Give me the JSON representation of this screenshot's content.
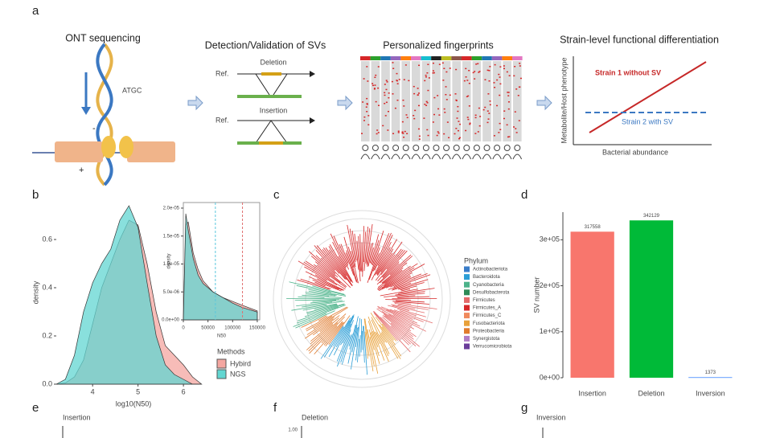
{
  "panel_labels": [
    "a",
    "b",
    "c",
    "d",
    "e",
    "f",
    "g"
  ],
  "panel_a": {
    "ont_title": "ONT sequencing",
    "bases": "ATGC",
    "minus": "-",
    "plus": "+",
    "sv_title": "Detection/Validation of SVs",
    "deletion": "Deletion",
    "insertion": "Insertion",
    "ref": [
      "Ref.",
      "Ref."
    ],
    "fingerprint_title": "Personalized fingerprints",
    "strain_title": "Strain-level functional differentiation",
    "strain1": "Strain 1 without SV",
    "strain2": "Strain 2 with SV",
    "y_label": "Metabolite/Host phenotype",
    "x_label": "Bacterial abundance"
  },
  "chart_data": [
    {
      "type": "area",
      "x_label": "log10(N50)",
      "y_label": "density",
      "x": [
        3.2,
        3.4,
        3.6,
        3.8,
        4.0,
        4.2,
        4.4,
        4.6,
        4.8,
        5.0,
        5.2,
        5.4,
        5.6,
        5.8,
        6.0,
        6.2,
        6.4
      ],
      "series": [
        {
          "name": "Hybird",
          "color": "#f4a6a0",
          "values": [
            0,
            0.005,
            0.03,
            0.1,
            0.25,
            0.4,
            0.5,
            0.6,
            0.68,
            0.66,
            0.5,
            0.3,
            0.16,
            0.12,
            0.08,
            0.03,
            0
          ]
        },
        {
          "name": "NGS",
          "color": "#62d6d1",
          "values": [
            0,
            0.02,
            0.12,
            0.3,
            0.42,
            0.5,
            0.56,
            0.68,
            0.74,
            0.65,
            0.42,
            0.2,
            0.08,
            0.04,
            0.02,
            0,
            0
          ]
        }
      ],
      "legend_title": "Methods",
      "xlim": [
        3.2,
        6.6
      ],
      "xticks": [
        4,
        5,
        6
      ],
      "ylim": [
        0,
        0.76
      ],
      "yticks": [
        {
          "value": 0,
          "label": "0.0"
        },
        0.2,
        0.4,
        0.6
      ]
    },
    {
      "type": "area",
      "x_label": "N50",
      "y_label": "density",
      "x": [
        0,
        5000,
        10000,
        20000,
        30000,
        40000,
        60000,
        80000,
        100000,
        120000,
        150000
      ],
      "series": [
        {
          "name": "Hybird",
          "color": "#f4a6a0",
          "values": [
            0,
            1.7e-05,
            1.75e-05,
            1.2e-05,
            9e-06,
            7e-06,
            5e-06,
            4e-06,
            3.3e-06,
            2.6e-06,
            1.6e-06
          ]
        },
        {
          "name": "NGS",
          "color": "#62d6d1",
          "values": [
            0,
            1.9e-05,
            1.6e-05,
            1.1e-05,
            8e-06,
            6.5e-06,
            5e-06,
            4e-06,
            3e-06,
            2.2e-06,
            1.4e-06
          ]
        }
      ],
      "vlines": [
        {
          "value": 65000,
          "color": "#5bc8dc"
        },
        {
          "value": 120000,
          "color": "#e07070"
        }
      ],
      "xlim": [
        0,
        155000
      ],
      "xticks": [
        0,
        50000,
        100000,
        150000
      ],
      "ylim": [
        0,
        2.1e-05
      ],
      "yticks": [
        {
          "value": 0,
          "label": "0.0e+00"
        },
        {
          "value": 5e-06,
          "label": "5.0e-06"
        },
        {
          "value": 1e-05,
          "label": "1.0e-05"
        },
        {
          "value": 1.5e-05,
          "label": "1.5e-05"
        },
        {
          "value": 2e-05,
          "label": "2.0e-05"
        }
      ]
    },
    {
      "type": "bar",
      "y_label": "SV number",
      "categories": [
        "Insertion",
        "Deletion",
        "Inversion"
      ],
      "values": [
        317558,
        342129,
        1373
      ],
      "colors": [
        "#f8766d",
        "#00ba38",
        "#619cff"
      ],
      "ylim": [
        0,
        360000
      ],
      "yticks": [
        {
          "value": 0,
          "label": "0e+00"
        },
        {
          "value": 100000,
          "label": "1e+05"
        },
        {
          "value": 200000,
          "label": "2e+05"
        },
        {
          "value": 300000,
          "label": "3e+05"
        }
      ]
    }
  ],
  "panel_c": {
    "legend_title": "Phylum",
    "phyla": [
      {
        "name": "Actinobacteriota",
        "color": "#3a7dc9"
      },
      {
        "name": "Bacteroidota",
        "color": "#2c9ed6"
      },
      {
        "name": "Cyanobacteria",
        "color": "#4cb38a"
      },
      {
        "name": "Desulfobacterota",
        "color": "#2e8b57"
      },
      {
        "name": "Firmicutes",
        "color": "#e46a6a"
      },
      {
        "name": "Firmicutes_A",
        "color": "#d62728"
      },
      {
        "name": "Firmicutes_C",
        "color": "#f08a5d"
      },
      {
        "name": "Fusobacteriota",
        "color": "#e8a13a"
      },
      {
        "name": "Proteobacteria",
        "color": "#e07b2e"
      },
      {
        "name": "Synergistota",
        "color": "#b07cc6"
      },
      {
        "name": "Verrucomicrobiota",
        "color": "#6a3d9a"
      }
    ]
  },
  "panel_efg": {
    "e_title": "Insertion",
    "f_title": "Deletion",
    "f_tick": "1.00",
    "g_title": "Inversion"
  }
}
